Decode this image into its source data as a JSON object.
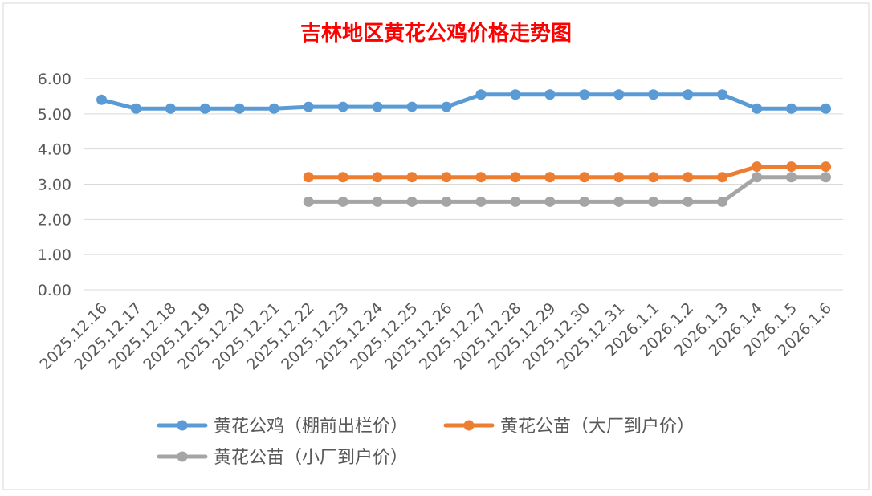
{
  "chart_data": {
    "type": "line",
    "title": "吉林地区黄花公鸡价格走势图",
    "xlabel": "",
    "ylabel": "",
    "ylim": [
      0,
      6
    ],
    "yticks": [
      "0.00",
      "1.00",
      "2.00",
      "3.00",
      "4.00",
      "5.00",
      "6.00"
    ],
    "grid": true,
    "legend_position": "bottom",
    "categories": [
      "2025.12.16",
      "2025.12.17",
      "2025.12.18",
      "2025.12.19",
      "2025.12.20",
      "2025.12.21",
      "2025.12.22",
      "2025.12.23",
      "2025.12.24",
      "2025.12.25",
      "2025.12.26",
      "2025.12.27",
      "2025.12.28",
      "2025.12.29",
      "2025.12.30",
      "2025.12.31",
      "2026.1.1",
      "2026.1.2",
      "2026.1.3",
      "2026.1.4",
      "2026.1.5",
      "2026.1.6"
    ],
    "series": [
      {
        "name": "黄花公鸡（棚前出栏价）",
        "color": "#5B9BD5",
        "values": [
          5.4,
          5.15,
          5.15,
          5.15,
          5.15,
          5.15,
          5.2,
          5.2,
          5.2,
          5.2,
          5.2,
          5.55,
          5.55,
          5.55,
          5.55,
          5.55,
          5.55,
          5.55,
          5.55,
          5.15,
          5.15,
          5.15
        ]
      },
      {
        "name": "黄花公苗（大厂到户价）",
        "color": "#ED7D31",
        "values": [
          null,
          null,
          null,
          null,
          null,
          null,
          3.2,
          3.2,
          3.2,
          3.2,
          3.2,
          3.2,
          3.2,
          3.2,
          3.2,
          3.2,
          3.2,
          3.2,
          3.2,
          3.5,
          3.5,
          3.5
        ]
      },
      {
        "name": "黄花公苗（小厂到户价）",
        "color": "#A5A5A5",
        "values": [
          null,
          null,
          null,
          null,
          null,
          null,
          2.5,
          2.5,
          2.5,
          2.5,
          2.5,
          2.5,
          2.5,
          2.5,
          2.5,
          2.5,
          2.5,
          2.5,
          2.5,
          3.2,
          3.2,
          3.2
        ]
      }
    ]
  }
}
